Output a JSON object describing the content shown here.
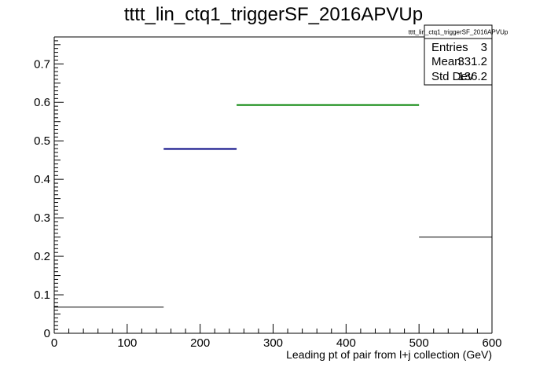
{
  "chart_data": {
    "type": "bar",
    "title": "tttt_lin_ctq1_triggerSF_2016APVUp",
    "xlabel": "Leading pt of pair from l+j collection (GeV)",
    "ylabel": "",
    "xlim": [
      0,
      600
    ],
    "ylim": [
      0,
      0.77
    ],
    "x_ticks": [
      "0",
      "100",
      "200",
      "300",
      "400",
      "500",
      "600"
    ],
    "y_ticks": [
      "0",
      "0.1",
      "0.2",
      "0.3",
      "0.4",
      "0.5",
      "0.6",
      "0.7"
    ],
    "bins": [
      {
        "x_low": 0,
        "x_high": 150,
        "value": 0.068,
        "color": "#000000"
      },
      {
        "x_low": 150,
        "x_high": 250,
        "value": 0.479,
        "color": "#000080"
      },
      {
        "x_low": 250,
        "x_high": 500,
        "value": 0.593,
        "color": "#008000"
      },
      {
        "x_low": 500,
        "x_high": 600,
        "value": 0.25,
        "color": "#000000"
      }
    ],
    "grid": false,
    "legend": "top-right"
  },
  "stats": {
    "name": "tttt_lin_ctq1_triggerSF_2016APVUp",
    "rows": [
      {
        "label": "Entries",
        "value": "3"
      },
      {
        "label": "Mean",
        "value": "331.2"
      },
      {
        "label": "Std Dev",
        "value": "136.2"
      }
    ]
  }
}
